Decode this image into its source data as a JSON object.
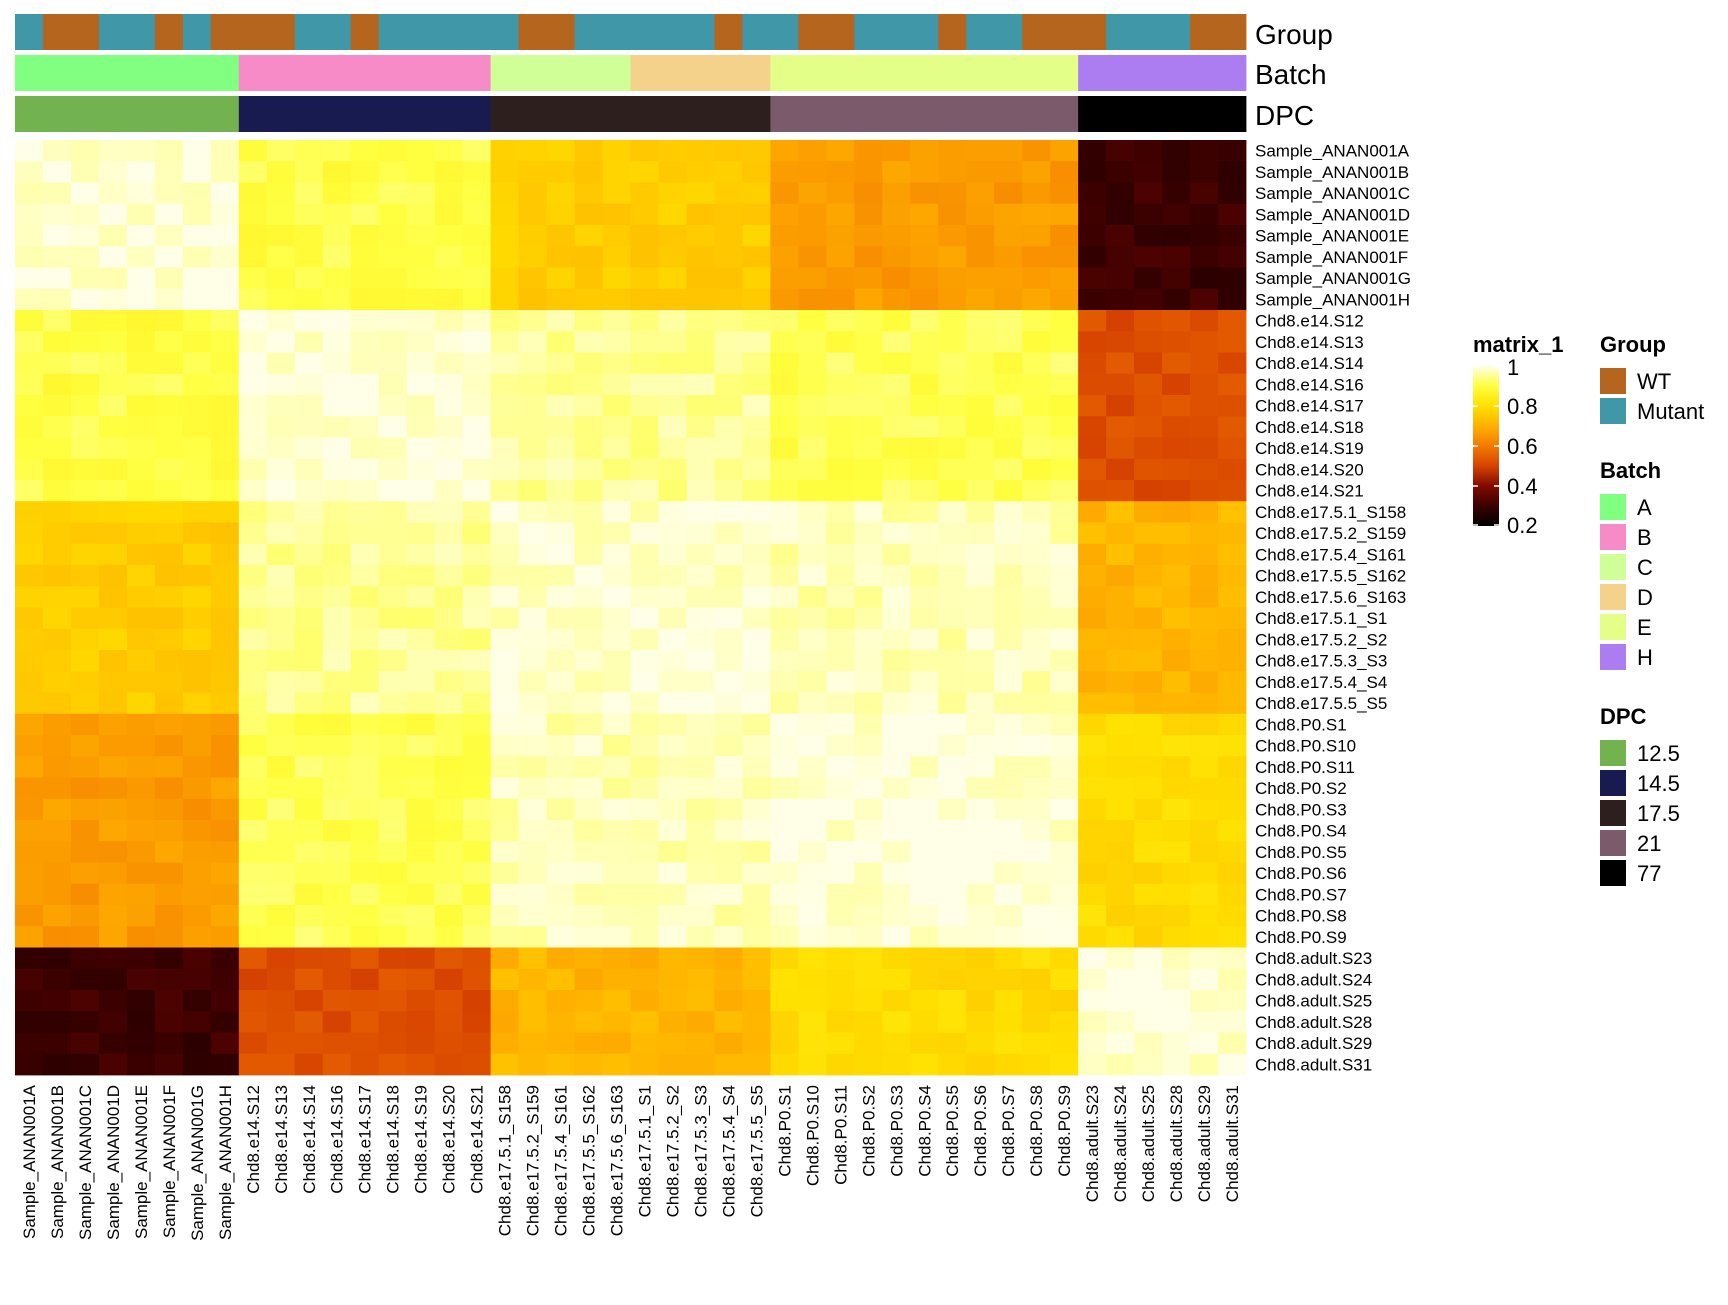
{
  "chart_data": {
    "type": "heatmap",
    "title": "",
    "samples": [
      "Sample_ANAN001A",
      "Sample_ANAN001B",
      "Sample_ANAN001C",
      "Sample_ANAN001D",
      "Sample_ANAN001E",
      "Sample_ANAN001F",
      "Sample_ANAN001G",
      "Sample_ANAN001H",
      "Chd8.e14.S12",
      "Chd8.e14.S13",
      "Chd8.e14.S14",
      "Chd8.e14.S16",
      "Chd8.e14.S17",
      "Chd8.e14.S18",
      "Chd8.e14.S19",
      "Chd8.e14.S20",
      "Chd8.e14.S21",
      "Chd8.e17.5.1_S158",
      "Chd8.e17.5.2_S159",
      "Chd8.e17.5.4_S161",
      "Chd8.e17.5.5_S162",
      "Chd8.e17.5.6_S163",
      "Chd8.e17.5.1_S1",
      "Chd8.e17.5.2_S2",
      "Chd8.e17.5.3_S3",
      "Chd8.e17.5.4_S4",
      "Chd8.e17.5.5_S5",
      "Chd8.P0.S1",
      "Chd8.P0.S10",
      "Chd8.P0.S11",
      "Chd8.P0.S2",
      "Chd8.P0.S3",
      "Chd8.P0.S4",
      "Chd8.P0.S5",
      "Chd8.P0.S6",
      "Chd8.P0.S7",
      "Chd8.P0.S8",
      "Chd8.P0.S9",
      "Chd8.adult.S23",
      "Chd8.adult.S24",
      "Chd8.adult.S25",
      "Chd8.adult.S28",
      "Chd8.adult.S29",
      "Chd8.adult.S31"
    ],
    "group_of_sample": [
      "Mutant",
      "WT",
      "WT",
      "Mutant",
      "Mutant",
      "WT",
      "Mutant",
      "WT",
      "WT",
      "WT",
      "Mutant",
      "Mutant",
      "WT",
      "Mutant",
      "Mutant",
      "Mutant",
      "Mutant",
      "Mutant",
      "WT",
      "WT",
      "Mutant",
      "Mutant",
      "Mutant",
      "Mutant",
      "Mutant",
      "WT",
      "Mutant",
      "Mutant",
      "WT",
      "WT",
      "Mutant",
      "Mutant",
      "Mutant",
      "WT",
      "Mutant",
      "Mutant",
      "WT",
      "WT",
      "WT",
      "Mutant",
      "Mutant",
      "Mutant",
      "WT",
      "WT"
    ],
    "batch_of_sample": [
      "A",
      "A",
      "A",
      "A",
      "A",
      "A",
      "A",
      "A",
      "B",
      "B",
      "B",
      "B",
      "B",
      "B",
      "B",
      "B",
      "B",
      "C",
      "C",
      "C",
      "C",
      "C",
      "D",
      "D",
      "D",
      "D",
      "D",
      "E",
      "E",
      "E",
      "E",
      "E",
      "E",
      "E",
      "E",
      "E",
      "E",
      "E",
      "H",
      "H",
      "H",
      "H",
      "H",
      "H"
    ],
    "dpc_of_sample": [
      "12.5",
      "12.5",
      "12.5",
      "12.5",
      "12.5",
      "12.5",
      "12.5",
      "12.5",
      "14.5",
      "14.5",
      "14.5",
      "14.5",
      "14.5",
      "14.5",
      "14.5",
      "14.5",
      "14.5",
      "17.5",
      "17.5",
      "17.5",
      "17.5",
      "17.5",
      "17.5",
      "17.5",
      "17.5",
      "17.5",
      "17.5",
      "21",
      "21",
      "21",
      "21",
      "21",
      "21",
      "21",
      "21",
      "21",
      "21",
      "21",
      "77",
      "77",
      "77",
      "77",
      "77",
      "77"
    ],
    "group_correlations": {
      "order": [
        "12.5",
        "14.5",
        "17.5",
        "21",
        "77"
      ],
      "matrix": [
        [
          0.99,
          0.9,
          0.76,
          0.66,
          0.3
        ],
        [
          0.9,
          0.99,
          0.95,
          0.91,
          0.52
        ],
        [
          0.76,
          0.95,
          0.98,
          0.97,
          0.71
        ],
        [
          0.66,
          0.91,
          0.97,
          0.99,
          0.79
        ],
        [
          0.3,
          0.52,
          0.71,
          0.79,
          0.98
        ]
      ]
    },
    "colorbar": {
      "title": "matrix_1",
      "min": 0.2,
      "max": 1,
      "ticks": [
        "1",
        "0.8",
        "0.6",
        "0.4",
        "0.2"
      ],
      "stops": [
        "#000000",
        "#3a0000",
        "#800a00",
        "#d64200",
        "#f47a00",
        "#ffb000",
        "#ffe000",
        "#ffff40",
        "#ffffe8"
      ]
    },
    "annotations": [
      {
        "key": "group",
        "title": "Group"
      },
      {
        "key": "batch",
        "title": "Batch"
      },
      {
        "key": "dpc",
        "title": "DPC"
      }
    ],
    "legends": {
      "group": {
        "title": "Group",
        "items": [
          {
            "label": "WT",
            "color": "#B5651D"
          },
          {
            "label": "Mutant",
            "color": "#3F97A7"
          }
        ]
      },
      "batch": {
        "title": "Batch",
        "items": [
          {
            "label": "A",
            "color": "#80FF80"
          },
          {
            "label": "B",
            "color": "#F78BC8"
          },
          {
            "label": "C",
            "color": "#CFFF96"
          },
          {
            "label": "D",
            "color": "#F5D28C"
          },
          {
            "label": "E",
            "color": "#E3FF87"
          },
          {
            "label": "H",
            "color": "#AC7DF0"
          }
        ]
      },
      "dpc": {
        "title": "DPC",
        "items": [
          {
            "label": "12.5",
            "color": "#72B350"
          },
          {
            "label": "14.5",
            "color": "#171B50"
          },
          {
            "label": "17.5",
            "color": "#2E1F1F"
          },
          {
            "label": "21",
            "color": "#7A5A6B"
          },
          {
            "label": "77",
            "color": "#000000"
          }
        ]
      }
    }
  }
}
